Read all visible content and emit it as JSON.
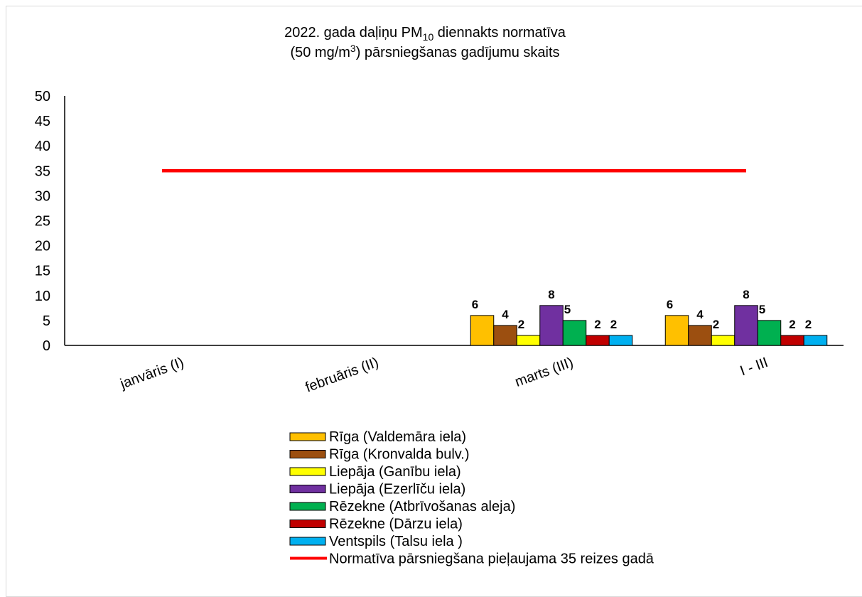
{
  "chart_data": {
    "type": "bar",
    "title_main": "2022. gada daļiņu PM",
    "title_sub": "10",
    "title_rest": " diennakts normatīva",
    "title_line2_a": "(50 mg/m",
    "title_line2_sup": "3",
    "title_line2_b": ") pārsniegšanas gadījumu skaits",
    "xlabel": "",
    "ylabel": "",
    "ylim": [
      0,
      50
    ],
    "yticks": [
      0,
      5,
      10,
      15,
      20,
      25,
      30,
      35,
      40,
      45,
      50
    ],
    "categories": [
      "janvāris (I)",
      "februāris (II)",
      "marts (III)",
      "I - III"
    ],
    "series": [
      {
        "name": "Rīga (Valdemāra iela)",
        "color": "#ffc000",
        "values": [
          null,
          null,
          6,
          6
        ]
      },
      {
        "name": "Rīga (Kronvalda bulv.)",
        "color": "#9c4f10",
        "values": [
          null,
          null,
          4,
          4
        ]
      },
      {
        "name": "Liepāja (Ganību iela)",
        "color": "#ffff00",
        "values": [
          null,
          null,
          2,
          2
        ]
      },
      {
        "name": "Liepāja (Ezerlīču iela)",
        "color": "#7030a0",
        "values": [
          null,
          null,
          8,
          8
        ]
      },
      {
        "name": "Rēzekne (Atbrīvošanas aleja)",
        "color": "#00b050",
        "values": [
          null,
          null,
          5,
          5
        ]
      },
      {
        "name": "Rēzekne (Dārzu iela)",
        "color": "#c00000",
        "values": [
          null,
          null,
          2,
          2
        ]
      },
      {
        "name": "Ventspils (Talsu iela )",
        "color": "#00b0f0",
        "values": [
          null,
          null,
          2,
          2
        ]
      }
    ],
    "threshold": {
      "name": "Normatīva pārsniegšana pieļaujama 35 reizes gadā",
      "value": 35,
      "color": "#ff0000"
    },
    "grid": false,
    "legend_position": "bottom"
  }
}
